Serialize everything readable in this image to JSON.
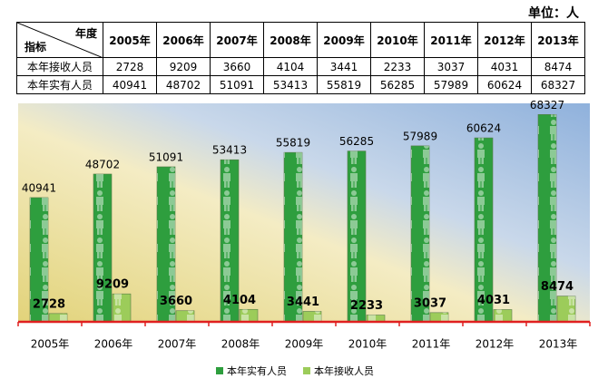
{
  "unit_label": "单位：人",
  "table": {
    "col_header": "年度",
    "row_header": "指标"
  },
  "chart_data": {
    "type": "bar",
    "categories": [
      "2005年",
      "2006年",
      "2007年",
      "2008年",
      "2009年",
      "2010年",
      "2011年",
      "2012年",
      "2013年"
    ],
    "series": [
      {
        "name": "本年实有人员",
        "color": "#2e9e3e",
        "values": [
          40941,
          48702,
          51091,
          53413,
          55819,
          56285,
          57989,
          60624,
          68327
        ]
      },
      {
        "name": "本年接收人员",
        "color": "#9ccc5a",
        "values": [
          2728,
          9209,
          3660,
          4104,
          3441,
          2233,
          3037,
          4031,
          8474
        ]
      }
    ],
    "ylim": [
      0,
      72000
    ],
    "legend": "bottom"
  }
}
